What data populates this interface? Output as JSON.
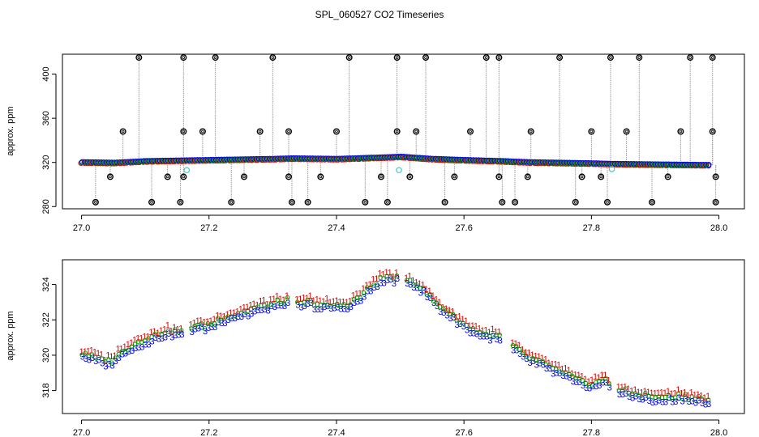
{
  "title": "SPL_060527  CO2 Timeseries",
  "colors": {
    "spike": "#000000",
    "series_red": "#e00000",
    "series_green": "#00a000",
    "series_blue": "#0000ee",
    "outlier_cyan": "#33cccc",
    "line_gray": "#9a9a9a"
  },
  "chart_data": [
    {
      "type": "scatter",
      "ylabel": "approx. ppm",
      "xlim": [
        26.97,
        28.04
      ],
      "ylim": [
        278,
        418
      ],
      "xticks": [
        "27.0",
        "27.2",
        "27.4",
        "27.6",
        "27.8",
        "28.0"
      ],
      "yticks": [
        "280",
        "320",
        "360",
        "400"
      ],
      "baseline": [
        [
          27.0,
          320
        ],
        [
          27.05,
          319.5
        ],
        [
          27.1,
          321
        ],
        [
          27.2,
          322
        ],
        [
          27.3,
          323
        ],
        [
          27.33,
          323.5
        ],
        [
          27.4,
          323
        ],
        [
          27.48,
          324.5
        ],
        [
          27.5,
          325
        ],
        [
          27.55,
          323
        ],
        [
          27.6,
          322
        ],
        [
          27.66,
          321
        ],
        [
          27.7,
          320
        ],
        [
          27.8,
          319
        ],
        [
          27.83,
          318.5
        ],
        [
          27.9,
          318
        ],
        [
          27.98,
          317.5
        ]
      ],
      "outliers": [
        [
          27.165,
          313
        ],
        [
          27.498,
          313
        ],
        [
          27.832,
          314
        ]
      ],
      "spikes": [
        [
          27.09,
          415
        ],
        [
          27.16,
          415
        ],
        [
          27.21,
          415
        ],
        [
          27.3,
          415
        ],
        [
          27.42,
          415
        ],
        [
          27.495,
          415
        ],
        [
          27.54,
          415
        ],
        [
          27.635,
          415
        ],
        [
          27.655,
          415
        ],
        [
          27.75,
          415
        ],
        [
          27.83,
          415
        ],
        [
          27.875,
          415
        ],
        [
          27.955,
          415
        ],
        [
          27.99,
          415
        ],
        [
          27.065,
          348
        ],
        [
          27.16,
          348
        ],
        [
          27.19,
          348
        ],
        [
          27.28,
          348
        ],
        [
          27.325,
          348
        ],
        [
          27.4,
          348
        ],
        [
          27.495,
          348
        ],
        [
          27.525,
          348
        ],
        [
          27.61,
          348
        ],
        [
          27.705,
          348
        ],
        [
          27.8,
          348
        ],
        [
          27.855,
          348
        ],
        [
          27.94,
          348
        ],
        [
          27.99,
          348
        ],
        [
          27.045,
          307
        ],
        [
          27.135,
          307
        ],
        [
          27.16,
          307
        ],
        [
          27.255,
          307
        ],
        [
          27.325,
          307
        ],
        [
          27.375,
          307
        ],
        [
          27.47,
          307
        ],
        [
          27.515,
          307
        ],
        [
          27.585,
          307
        ],
        [
          27.655,
          307
        ],
        [
          27.7,
          307
        ],
        [
          27.785,
          307
        ],
        [
          27.815,
          307
        ],
        [
          27.92,
          307
        ],
        [
          27.995,
          307
        ],
        [
          27.022,
          284
        ],
        [
          27.11,
          284
        ],
        [
          27.155,
          284
        ],
        [
          27.235,
          284
        ],
        [
          27.33,
          284
        ],
        [
          27.355,
          284
        ],
        [
          27.445,
          284
        ],
        [
          27.48,
          284
        ],
        [
          27.57,
          284
        ],
        [
          27.66,
          284
        ],
        [
          27.68,
          284
        ],
        [
          27.775,
          284
        ],
        [
          27.825,
          284
        ],
        [
          27.895,
          284
        ],
        [
          27.995,
          284
        ]
      ]
    },
    {
      "type": "scatter",
      "ylabel": "approx. ppm",
      "xlim": [
        26.97,
        28.04
      ],
      "ylim": [
        316.7,
        325.4
      ],
      "xticks": [
        "27.0",
        "27.2",
        "27.4",
        "27.6",
        "27.8",
        "28.0"
      ],
      "yticks": [
        "318",
        "320",
        "322",
        "324"
      ],
      "gaps": [
        27.165,
        27.33,
        27.5,
        27.665,
        27.835
      ],
      "series": [
        {
          "marker": "1",
          "offset": 0.25
        },
        {
          "marker": "o",
          "offset": 0.05
        },
        {
          "marker": "3",
          "offset": -0.18
        }
      ],
      "trend": [
        [
          27.0,
          320.1
        ],
        [
          27.02,
          319.9
        ],
        [
          27.04,
          319.6
        ],
        [
          27.05,
          319.8
        ],
        [
          27.07,
          320.4
        ],
        [
          27.1,
          320.9
        ],
        [
          27.13,
          321.3
        ],
        [
          27.16,
          321.3
        ],
        [
          27.17,
          321.6
        ],
        [
          27.2,
          321.7
        ],
        [
          27.22,
          322.1
        ],
        [
          27.26,
          322.5
        ],
        [
          27.3,
          322.9
        ],
        [
          27.325,
          323.1
        ],
        [
          27.335,
          322.9
        ],
        [
          27.36,
          323.0
        ],
        [
          27.38,
          322.8
        ],
        [
          27.42,
          322.9
        ],
        [
          27.44,
          323.4
        ],
        [
          27.46,
          324.1
        ],
        [
          27.48,
          324.4
        ],
        [
          27.49,
          324.4
        ],
        [
          27.505,
          324.4
        ],
        [
          27.53,
          323.9
        ],
        [
          27.56,
          322.8
        ],
        [
          27.6,
          321.7
        ],
        [
          27.63,
          321.2
        ],
        [
          27.66,
          321.0
        ],
        [
          27.67,
          320.6
        ],
        [
          27.7,
          319.9
        ],
        [
          27.73,
          319.4
        ],
        [
          27.76,
          318.9
        ],
        [
          27.78,
          318.5
        ],
        [
          27.8,
          318.4
        ],
        [
          27.82,
          318.6
        ],
        [
          27.835,
          318.2
        ],
        [
          27.86,
          317.8
        ],
        [
          27.9,
          317.6
        ],
        [
          27.94,
          317.7
        ],
        [
          27.96,
          317.6
        ],
        [
          27.985,
          317.4
        ]
      ]
    }
  ]
}
